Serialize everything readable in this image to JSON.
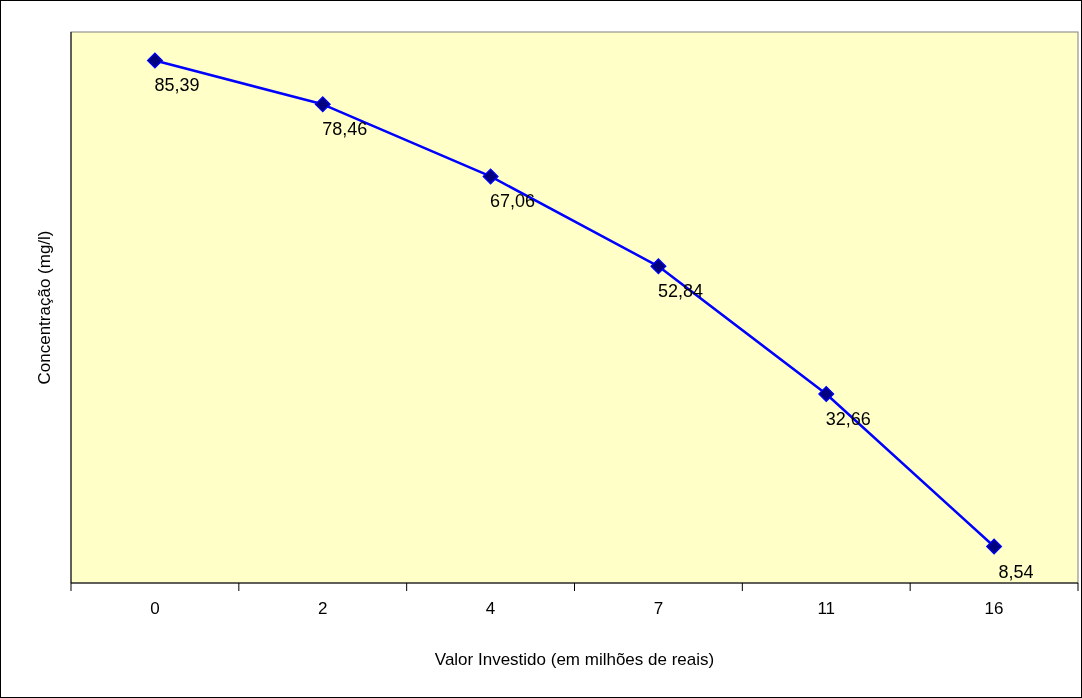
{
  "chart_data": {
    "type": "line",
    "xlabel": "Valor Investido (em milhões de reais)",
    "ylabel": "Concentração (mg/l)",
    "categories": [
      "0",
      "2",
      "4",
      "7",
      "11",
      "16"
    ],
    "series": [
      {
        "color": "#0000ff",
        "values": [
          85.39,
          78.46,
          67.06,
          52.84,
          32.66,
          8.54
        ],
        "value_labels": [
          "85,39",
          "78,46",
          "67,06",
          "52,84",
          "32,66",
          "8,54"
        ]
      }
    ],
    "marker": "diamond",
    "line_style": "solid",
    "tick_labels": "x"
  }
}
